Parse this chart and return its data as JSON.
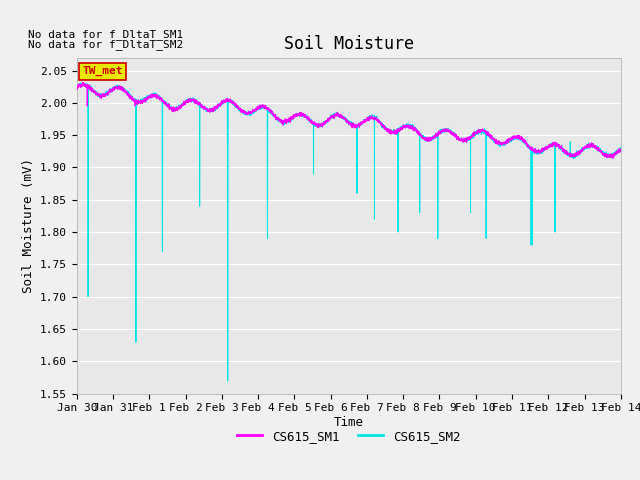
{
  "title": "Soil Moisture",
  "ylabel": "Soil Moisture (mV)",
  "xlabel": "Time",
  "ylim": [
    1.55,
    2.07
  ],
  "yticks": [
    1.55,
    1.6,
    1.65,
    1.7,
    1.75,
    1.8,
    1.85,
    1.9,
    1.95,
    2.0,
    2.05
  ],
  "xtick_labels": [
    "Jan 30",
    "Jan 31",
    "Feb 1",
    "Feb 2",
    "Feb 3",
    "Feb 4",
    "Feb 5",
    "Feb 6",
    "Feb 7",
    "Feb 8",
    "Feb 9",
    "Feb 10",
    "Feb 11",
    "Feb 12",
    "Feb 13",
    "Feb 14"
  ],
  "no_data_text1": "No data for f_DltaT_SM1",
  "no_data_text2": "No data for f_DltaT_SM2",
  "legend_box_text": "TW_met",
  "legend_box_color": "#e8e800",
  "legend_box_border": "#cc0000",
  "legend_box_text_color": "#cc0000",
  "color_sm1": "#ff00ff",
  "color_sm2": "#00e5e5",
  "bg_color": "#e8e8e8",
  "grid_color": "#ffffff",
  "fig_bg_color": "#f0f0f0",
  "label_sm1": "CS615_SM1",
  "label_sm2": "CS615_SM2",
  "title_fontsize": 12,
  "axis_label_fontsize": 9,
  "tick_fontsize": 8,
  "nodata_fontsize": 8
}
